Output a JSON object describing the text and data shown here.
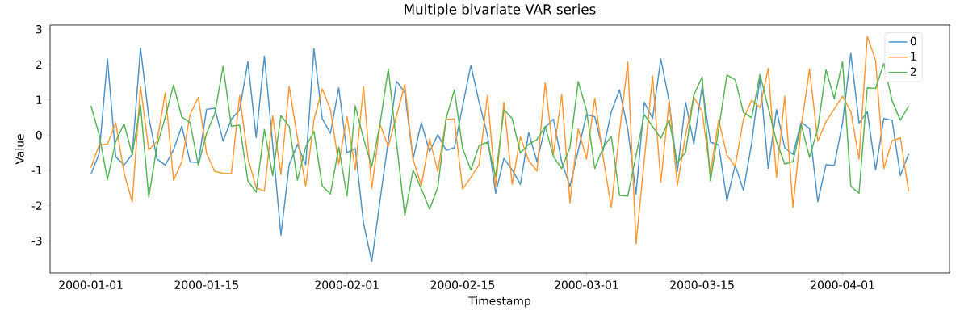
{
  "chart_data": {
    "type": "line",
    "title": "Multiple bivariate VAR series",
    "xlabel": "Timestamp",
    "ylabel": "Value",
    "x": [
      "2000-01-01",
      "2000-01-02",
      "2000-01-03",
      "2000-01-04",
      "2000-01-05",
      "2000-01-06",
      "2000-01-07",
      "2000-01-08",
      "2000-01-09",
      "2000-01-10",
      "2000-01-11",
      "2000-01-12",
      "2000-01-13",
      "2000-01-14",
      "2000-01-15",
      "2000-01-16",
      "2000-01-17",
      "2000-01-18",
      "2000-01-19",
      "2000-01-20",
      "2000-01-21",
      "2000-01-22",
      "2000-01-23",
      "2000-01-24",
      "2000-01-25",
      "2000-01-26",
      "2000-01-27",
      "2000-01-28",
      "2000-01-29",
      "2000-01-30",
      "2000-01-31",
      "2000-02-01",
      "2000-02-02",
      "2000-02-03",
      "2000-02-04",
      "2000-02-05",
      "2000-02-06",
      "2000-02-07",
      "2000-02-08",
      "2000-02-09",
      "2000-02-10",
      "2000-02-11",
      "2000-02-12",
      "2000-02-13",
      "2000-02-14",
      "2000-02-15",
      "2000-02-16",
      "2000-02-17",
      "2000-02-18",
      "2000-02-19",
      "2000-02-20",
      "2000-02-21",
      "2000-02-22",
      "2000-02-23",
      "2000-02-24",
      "2000-02-25",
      "2000-02-26",
      "2000-02-27",
      "2000-02-28",
      "2000-02-29",
      "2000-03-01",
      "2000-03-02",
      "2000-03-03",
      "2000-03-04",
      "2000-03-05",
      "2000-03-06",
      "2000-03-07",
      "2000-03-08",
      "2000-03-09",
      "2000-03-10",
      "2000-03-11",
      "2000-03-12",
      "2000-03-13",
      "2000-03-14",
      "2000-03-15",
      "2000-03-16",
      "2000-03-17",
      "2000-03-18",
      "2000-03-19",
      "2000-03-20",
      "2000-03-21",
      "2000-03-22",
      "2000-03-23",
      "2000-03-24",
      "2000-03-25",
      "2000-03-26",
      "2000-03-27",
      "2000-03-28",
      "2000-03-29",
      "2000-03-30",
      "2000-03-31",
      "2000-04-01",
      "2000-04-02",
      "2000-04-03",
      "2000-04-04",
      "2000-04-05",
      "2000-04-06",
      "2000-04-07",
      "2000-04-08",
      "2000-04-09"
    ],
    "series": [
      {
        "name": "0",
        "color": "#4c92c3",
        "values": [
          -1.11,
          -0.52,
          2.16,
          -0.61,
          -0.85,
          -0.55,
          2.47,
          0.51,
          -0.68,
          -0.85,
          -0.42,
          0.25,
          -0.76,
          -0.78,
          0.73,
          0.76,
          -0.17,
          0.45,
          0.71,
          2.08,
          -0.07,
          2.24,
          -0.26,
          -2.84,
          -0.84,
          -0.26,
          -0.84,
          2.45,
          0.47,
          0.05,
          1.34,
          -0.5,
          -0.38,
          -2.5,
          -3.59,
          -1.85,
          -0.16,
          1.53,
          1.2,
          -0.68,
          0.35,
          -0.47,
          0.01,
          -0.43,
          -0.36,
          0.82,
          1.98,
          0.93,
          0.01,
          -1.65,
          -0.66,
          -0.99,
          -1.4,
          0.07,
          -0.75,
          0.22,
          0.45,
          -0.76,
          -1.45,
          -0.43,
          0.58,
          0.52,
          -0.45,
          0.66,
          1.28,
          0.16,
          -1.67,
          0.93,
          0.47,
          2.16,
          0.97,
          -1.03,
          0.93,
          -0.25,
          1.38,
          -0.2,
          -0.28,
          -1.86,
          -0.85,
          -1.57,
          -0.22,
          1.62,
          -0.94,
          0.72,
          -0.36,
          -0.55,
          0.37,
          0.18,
          -1.89,
          -0.84,
          -0.86,
          0.35,
          2.32,
          0.34,
          0.66,
          -0.98,
          0.47,
          0.42,
          -1.15,
          -0.53
        ]
      },
      {
        "name": "1",
        "color": "#ff9833",
        "values": [
          -0.92,
          -0.28,
          -0.26,
          0.35,
          -1.07,
          -1.89,
          1.38,
          -0.42,
          -0.18,
          1.2,
          -1.28,
          -0.76,
          0.58,
          1.07,
          -0.52,
          -1.03,
          -1.08,
          -1.1,
          1.12,
          -0.65,
          -1.49,
          -1.59,
          0.55,
          -1.12,
          1.38,
          -0.07,
          -1.45,
          0.43,
          1.31,
          0.72,
          -0.82,
          0.53,
          -0.99,
          1.38,
          -1.52,
          0.3,
          -0.32,
          0.55,
          1.43,
          -0.68,
          -1.44,
          -0.11,
          -1.03,
          0.45,
          0.45,
          -1.53,
          -1.2,
          -0.84,
          1.12,
          -1.49,
          0.93,
          -1.4,
          -0.05,
          -0.72,
          -1.02,
          1.48,
          -0.55,
          1.15,
          -1.92,
          0.18,
          -0.68,
          1.05,
          -0.61,
          -2.05,
          0.08,
          2.07,
          -3.08,
          -0.7,
          1.68,
          -1.34,
          0.97,
          -1.43,
          0.01,
          1.08,
          0.66,
          -1.07,
          0.43,
          -0.57,
          -0.89,
          0.45,
          0.99,
          0.78,
          1.89,
          -1.2,
          1.1,
          -2.05,
          0.25,
          1.87,
          -0.17,
          0.38,
          0.74,
          1.1,
          0.66,
          -0.68,
          2.8,
          2.12,
          -0.95,
          -0.16,
          -0.08,
          -1.59
        ]
      },
      {
        "name": "2",
        "color": "#56b356",
        "values": [
          0.83,
          0.01,
          -1.27,
          -0.18,
          0.32,
          -0.55,
          0.85,
          -1.76,
          -0.3,
          0.51,
          1.42,
          0.51,
          0.35,
          -0.85,
          0.05,
          0.62,
          1.95,
          0.25,
          0.28,
          -1.3,
          -1.62,
          0.16,
          -1.15,
          0.55,
          0.25,
          -1.28,
          -0.34,
          0.1,
          -1.44,
          -1.67,
          -0.34,
          -1.73,
          0.83,
          -0.1,
          -0.89,
          0.32,
          1.88,
          -0.22,
          -2.28,
          -0.99,
          -1.53,
          -2.1,
          -1.48,
          0.47,
          1.28,
          -0.38,
          -0.99,
          -0.3,
          -0.2,
          -1.18,
          0.72,
          0.47,
          -0.51,
          -0.26,
          -0.13,
          0.25,
          -0.61,
          -0.95,
          -0.34,
          1.52,
          0.7,
          -0.95,
          -0.36,
          -0.03,
          -1.71,
          -1.73,
          -0.57,
          0.58,
          0.24,
          -0.09,
          0.43,
          -0.78,
          -0.49,
          1.14,
          1.65,
          -1.3,
          0.16,
          1.7,
          1.57,
          0.64,
          0.49,
          1.72,
          0.78,
          -0.18,
          -0.82,
          -0.75,
          0.3,
          -0.63,
          0.18,
          1.85,
          1.03,
          2.08,
          -1.45,
          -1.65,
          1.34,
          1.32,
          2.03,
          0.97,
          0.42,
          0.82
        ]
      }
    ],
    "xlim": [
      "1999-12-27T01:12",
      "2000-04-13T22:48"
    ],
    "xticks": [
      "2000-01-01",
      "2000-01-15",
      "2000-02-01",
      "2000-02-15",
      "2000-03-01",
      "2000-03-15",
      "2000-04-01"
    ],
    "ylim": [
      -3.91,
      3.12
    ],
    "yticks": [
      -3,
      -2,
      -1,
      0,
      1,
      2,
      3
    ],
    "legend": "top right"
  }
}
